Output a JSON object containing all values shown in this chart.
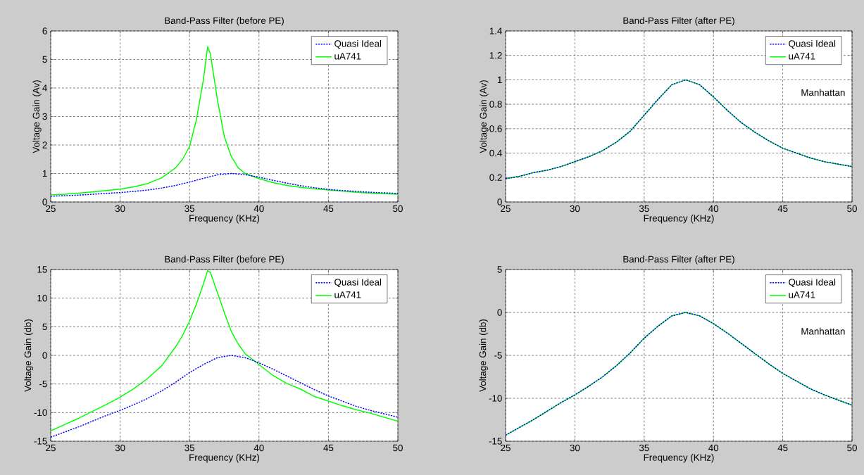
{
  "chart_data": [
    {
      "type": "line",
      "title": "Band-Pass Filter (before PE)",
      "xlabel": "Frequency (KHz)",
      "ylabel": "Voltage Gain (Av)",
      "xlim": [
        25,
        50
      ],
      "ylim": [
        0,
        6
      ],
      "xticks": [
        25,
        30,
        35,
        40,
        45,
        50
      ],
      "yticks": [
        0,
        1,
        2,
        3,
        4,
        5,
        6
      ],
      "grid": true,
      "legend": "top right",
      "series": [
        {
          "name": "Quasi Ideal",
          "color": "#0000ff",
          "line_style": "dotted",
          "x": [
            25,
            26,
            27,
            28,
            29,
            30,
            31,
            32,
            33,
            34,
            35,
            36,
            37,
            38,
            39,
            40,
            41,
            42,
            43,
            44,
            45,
            46,
            47,
            48,
            49,
            50
          ],
          "values": [
            0.2,
            0.22,
            0.24,
            0.27,
            0.3,
            0.33,
            0.37,
            0.42,
            0.49,
            0.58,
            0.7,
            0.83,
            0.95,
            1.0,
            0.96,
            0.87,
            0.76,
            0.66,
            0.57,
            0.5,
            0.44,
            0.4,
            0.37,
            0.34,
            0.32,
            0.3
          ]
        },
        {
          "name": "uA741",
          "color": "#00ff00",
          "line_style": "solid",
          "x": [
            25,
            26,
            27,
            28,
            29,
            30,
            31,
            32,
            33,
            34,
            34.5,
            35,
            35.5,
            36,
            36.3,
            36.5,
            37,
            37.5,
            38,
            38.5,
            39,
            40,
            41,
            42,
            43,
            44,
            45,
            46,
            47,
            48,
            49,
            50
          ],
          "values": [
            0.25,
            0.27,
            0.31,
            0.35,
            0.4,
            0.45,
            0.53,
            0.65,
            0.85,
            1.2,
            1.5,
            1.95,
            2.9,
            4.3,
            5.45,
            5.2,
            3.6,
            2.3,
            1.6,
            1.2,
            1.0,
            0.82,
            0.68,
            0.58,
            0.51,
            0.46,
            0.42,
            0.38,
            0.34,
            0.31,
            0.29,
            0.27
          ]
        }
      ]
    },
    {
      "type": "line",
      "title": "Band-Pass Filter (after PE)",
      "xlabel": "Frequency (KHz)",
      "ylabel": "Voltage Gain (Av)",
      "xlim": [
        25,
        50
      ],
      "ylim": [
        0,
        1.4
      ],
      "xticks": [
        25,
        30,
        35,
        40,
        45,
        50
      ],
      "yticks": [
        0,
        0.2,
        0.4,
        0.6,
        0.8,
        1,
        1.2,
        1.4
      ],
      "grid": true,
      "legend": "top right",
      "annotations": [
        "Manhattan"
      ],
      "series": [
        {
          "name": "Quasi Ideal",
          "color": "#0000ff",
          "line_style": "dotted",
          "x": [
            25,
            26,
            27,
            28,
            29,
            30,
            31,
            32,
            33,
            34,
            35,
            36,
            37,
            38,
            39,
            40,
            41,
            42,
            43,
            44,
            45,
            46,
            47,
            48,
            49,
            50
          ],
          "values": [
            0.19,
            0.21,
            0.24,
            0.26,
            0.29,
            0.33,
            0.37,
            0.42,
            0.49,
            0.58,
            0.71,
            0.84,
            0.96,
            1.0,
            0.96,
            0.86,
            0.75,
            0.65,
            0.57,
            0.5,
            0.44,
            0.4,
            0.36,
            0.33,
            0.31,
            0.29
          ]
        },
        {
          "name": "uA741",
          "color": "#00ff00",
          "line_style": "solid",
          "x": [
            25,
            26,
            27,
            28,
            29,
            30,
            31,
            32,
            33,
            34,
            35,
            36,
            37,
            38,
            39,
            40,
            41,
            42,
            43,
            44,
            45,
            46,
            47,
            48,
            49,
            50
          ],
          "values": [
            0.19,
            0.21,
            0.24,
            0.26,
            0.29,
            0.33,
            0.37,
            0.42,
            0.49,
            0.58,
            0.71,
            0.84,
            0.96,
            1.0,
            0.96,
            0.86,
            0.75,
            0.65,
            0.57,
            0.5,
            0.44,
            0.4,
            0.36,
            0.33,
            0.31,
            0.29
          ]
        }
      ]
    },
    {
      "type": "line",
      "title": "Band-Pass Filter (before PE)",
      "xlabel": "Frequency (KHz)",
      "ylabel": "Voltage Gain (db)",
      "xlim": [
        25,
        50
      ],
      "ylim": [
        -15,
        15
      ],
      "xticks": [
        25,
        30,
        35,
        40,
        45,
        50
      ],
      "yticks": [
        -15,
        -10,
        -5,
        0,
        5,
        10,
        15
      ],
      "grid": true,
      "legend": "top right",
      "series": [
        {
          "name": "Quasi Ideal",
          "color": "#0000ff",
          "line_style": "dotted",
          "x": [
            25,
            26,
            27,
            28,
            29,
            30,
            31,
            32,
            33,
            34,
            35,
            36,
            37,
            38,
            39,
            40,
            41,
            42,
            43,
            44,
            45,
            46,
            47,
            48,
            49,
            50
          ],
          "values": [
            -14.3,
            -13.4,
            -12.5,
            -11.5,
            -10.5,
            -9.6,
            -8.6,
            -7.5,
            -6.2,
            -4.7,
            -3.0,
            -1.6,
            -0.4,
            0,
            -0.4,
            -1.3,
            -2.4,
            -3.6,
            -4.8,
            -6.0,
            -7.1,
            -8.0,
            -8.9,
            -9.6,
            -10.2,
            -10.8
          ]
        },
        {
          "name": "uA741",
          "color": "#00ff00",
          "line_style": "solid",
          "x": [
            25,
            26,
            27,
            28,
            29,
            30,
            31,
            32,
            33,
            34,
            34.5,
            35,
            35.5,
            36,
            36.3,
            36.5,
            37,
            37.5,
            38,
            38.5,
            39,
            40,
            41,
            42,
            43,
            44,
            45,
            46,
            47,
            48,
            49,
            50
          ],
          "values": [
            -13.2,
            -12.1,
            -11.0,
            -9.8,
            -8.6,
            -7.3,
            -5.8,
            -4.0,
            -1.8,
            1.5,
            3.5,
            6.0,
            9.0,
            12.5,
            14.8,
            14.5,
            11.0,
            7.5,
            4.2,
            2.0,
            0.3,
            -1.6,
            -3.5,
            -4.9,
            -5.9,
            -7.2,
            -8.0,
            -8.8,
            -9.5,
            -10.1,
            -10.8,
            -11.5
          ]
        }
      ]
    },
    {
      "type": "line",
      "title": "Band-Pass Filter (after PE)",
      "xlabel": "Frequency (KHz)",
      "ylabel": "Voltage Gain (db)",
      "xlim": [
        25,
        50
      ],
      "ylim": [
        -15,
        5
      ],
      "xticks": [
        25,
        30,
        35,
        40,
        45,
        50
      ],
      "yticks": [
        -15,
        -10,
        -5,
        0,
        5
      ],
      "grid": true,
      "legend": "top right",
      "annotations": [
        "Manhattan"
      ],
      "series": [
        {
          "name": "Quasi Ideal",
          "color": "#0000ff",
          "line_style": "dotted",
          "x": [
            25,
            26,
            27,
            28,
            29,
            30,
            31,
            32,
            33,
            34,
            35,
            36,
            37,
            38,
            39,
            40,
            41,
            42,
            43,
            44,
            45,
            46,
            47,
            48,
            49,
            50
          ],
          "values": [
            -14.3,
            -13.4,
            -12.5,
            -11.5,
            -10.5,
            -9.6,
            -8.6,
            -7.5,
            -6.2,
            -4.7,
            -3.0,
            -1.6,
            -0.4,
            0,
            -0.4,
            -1.3,
            -2.4,
            -3.6,
            -4.8,
            -6.0,
            -7.1,
            -8.0,
            -8.9,
            -9.6,
            -10.2,
            -10.8
          ]
        },
        {
          "name": "uA741",
          "color": "#00ff00",
          "line_style": "solid",
          "x": [
            25,
            26,
            27,
            28,
            29,
            30,
            31,
            32,
            33,
            34,
            35,
            36,
            37,
            38,
            39,
            40,
            41,
            42,
            43,
            44,
            45,
            46,
            47,
            48,
            49,
            50
          ],
          "values": [
            -14.3,
            -13.4,
            -12.5,
            -11.5,
            -10.5,
            -9.6,
            -8.6,
            -7.5,
            -6.2,
            -4.7,
            -3.0,
            -1.6,
            -0.4,
            0,
            -0.4,
            -1.3,
            -2.4,
            -3.6,
            -4.8,
            -6.0,
            -7.1,
            -8.0,
            -8.9,
            -9.6,
            -10.2,
            -10.8
          ]
        }
      ]
    }
  ]
}
